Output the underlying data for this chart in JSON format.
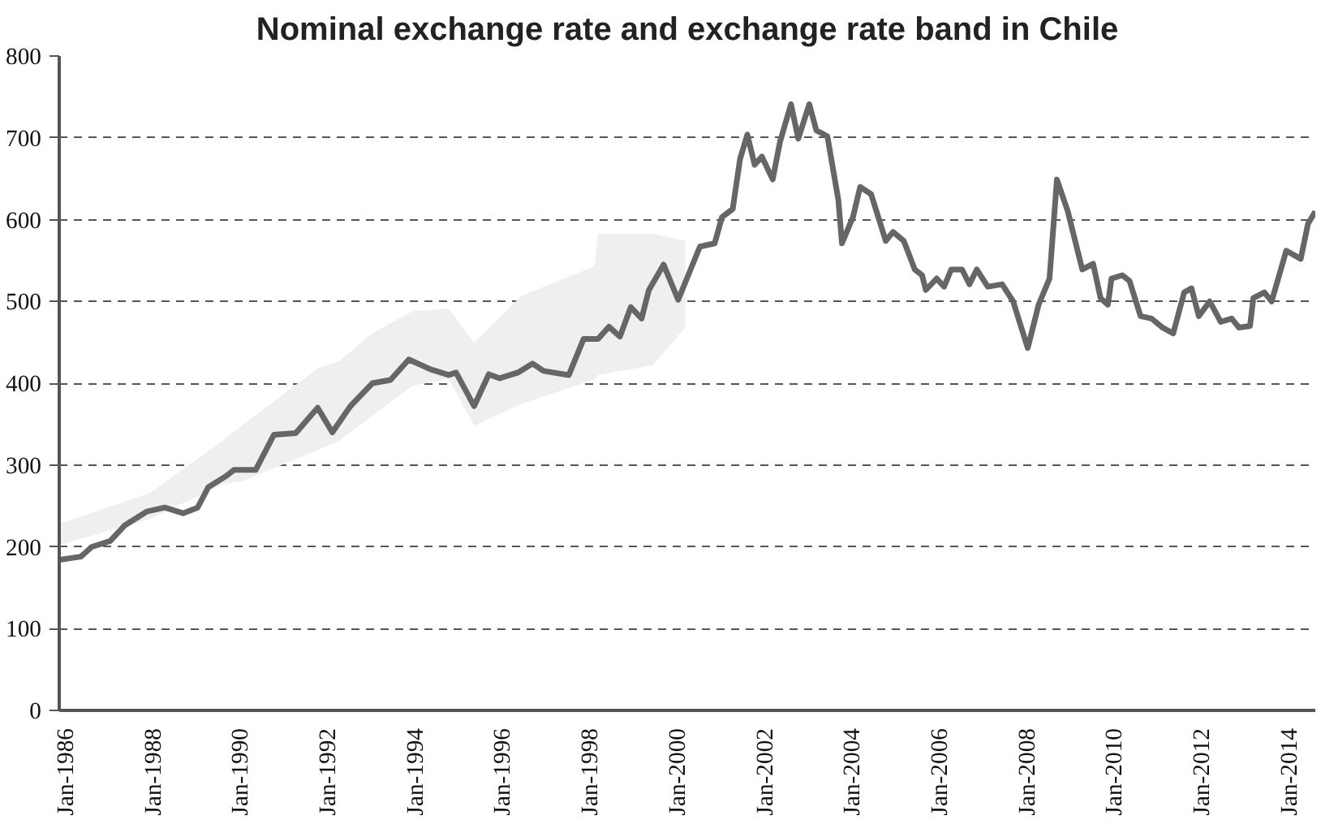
{
  "chart_data": {
    "type": "line",
    "title": "Nominal exchange rate and exchange rate band in Chile",
    "xlim": [
      "1985-11",
      "2014-08"
    ],
    "ylim": [
      0,
      800
    ],
    "yticks": [
      0,
      100,
      200,
      300,
      400,
      500,
      600,
      700,
      800
    ],
    "grid": "y",
    "xticks": [
      {
        "value": "1986-01",
        "label": "Jan-1986"
      },
      {
        "value": "1988-01",
        "label": "Jan-1988"
      },
      {
        "value": "1990-01",
        "label": "Jan-1990"
      },
      {
        "value": "1992-01",
        "label": "Jan-1992"
      },
      {
        "value": "1994-01",
        "label": "Jan-1994"
      },
      {
        "value": "1996-01",
        "label": "Jan-1996"
      },
      {
        "value": "1998-01",
        "label": "Jan-1998"
      },
      {
        "value": "2000-01",
        "label": "Jan-2000"
      },
      {
        "value": "2002-01",
        "label": "Jan-2002"
      },
      {
        "value": "2004-01",
        "label": "Jan-2004"
      },
      {
        "value": "2006-01",
        "label": "Jan-2006"
      },
      {
        "value": "2008-01",
        "label": "Jan-2008"
      },
      {
        "value": "2010-01",
        "label": "Jan-2010"
      },
      {
        "value": "2012-01",
        "label": "Jan-2012"
      },
      {
        "value": "2014-01",
        "label": "Jan-2014"
      }
    ],
    "series": [
      {
        "type": "line",
        "color": "#efefef",
        "x": [
          "1985-11",
          "1987-12",
          "1989-08",
          "1990-01",
          "1991-10",
          "1992-04",
          "1993-01",
          "1993-12",
          "1994-10",
          "1995-05",
          "1996-06",
          "1998-02",
          "1998-03",
          "1999-06",
          "2000-03"
        ],
        "values": [
          null,
          null,
          null,
          null,
          null,
          null,
          null,
          null,
          null,
          null,
          null,
          null,
          null,
          null,
          null
        ],
        "upper": [
          228,
          266,
          330,
          348,
          418,
          427,
          461,
          488,
          491,
          450,
          507,
          543,
          583,
          583,
          574
        ],
        "lower": [
          202,
          234,
          277,
          280,
          318,
          330,
          360,
          397,
          405,
          348,
          375,
          405,
          410,
          422,
          468
        ]
      },
      {
        "type": "line",
        "color": "#666666",
        "x": [
          "1985-11",
          "1986-05",
          "1986-08",
          "1987-01",
          "1987-05",
          "1987-11",
          "1988-04",
          "1988-09",
          "1989-01",
          "1989-04",
          "1989-09",
          "1989-11",
          "1990-05",
          "1990-10",
          "1991-04",
          "1991-10",
          "1992-02",
          "1992-07",
          "1993-01",
          "1993-06",
          "1993-11",
          "1994-05",
          "1994-10",
          "1994-12",
          "1995-05",
          "1995-09",
          "1995-12",
          "1996-05",
          "1996-09",
          "1996-12",
          "1997-07",
          "1997-11",
          "1998-03",
          "1998-06",
          "1998-09",
          "1998-12",
          "1999-03",
          "1999-05",
          "1999-09",
          "2000-01",
          "2000-07",
          "2000-11",
          "2001-01",
          "2001-04",
          "2001-06",
          "2001-08",
          "2001-10",
          "2001-12",
          "2002-03",
          "2002-05",
          "2002-08",
          "2002-10",
          "2003-01",
          "2003-03",
          "2003-06",
          "2003-09",
          "2003-10",
          "2004-01",
          "2004-03",
          "2004-06",
          "2004-10",
          "2004-12",
          "2005-03",
          "2005-06",
          "2005-08",
          "2005-09",
          "2005-12",
          "2006-02",
          "2006-04",
          "2006-07",
          "2006-09",
          "2006-11",
          "2007-02",
          "2007-06",
          "2007-09",
          "2008-01",
          "2008-04",
          "2008-07",
          "2008-09",
          "2008-12",
          "2009-04",
          "2009-07",
          "2009-09",
          "2009-11",
          "2009-12",
          "2010-03",
          "2010-05",
          "2010-08",
          "2010-11",
          "2011-02",
          "2011-05",
          "2011-08",
          "2011-10",
          "2011-12",
          "2012-03",
          "2012-06",
          "2012-09",
          "2012-11",
          "2013-02",
          "2013-03",
          "2013-06",
          "2013-08",
          "2013-12",
          "2014-04",
          "2014-06",
          "2014-08"
        ],
        "values": [
          184,
          188,
          200,
          207,
          226,
          243,
          248,
          241,
          248,
          273,
          287,
          294,
          294,
          337,
          339,
          370,
          340,
          372,
          400,
          404,
          429,
          417,
          410,
          413,
          372,
          411,
          406,
          413,
          424,
          415,
          410,
          454,
          454,
          469,
          457,
          493,
          479,
          514,
          545,
          502,
          567,
          571,
          603,
          613,
          674,
          704,
          667,
          677,
          649,
          695,
          741,
          699,
          741,
          709,
          702,
          624,
          571,
          603,
          640,
          631,
          574,
          585,
          574,
          539,
          532,
          514,
          528,
          518,
          539,
          539,
          521,
          539,
          518,
          521,
          500,
          443,
          496,
          528,
          649,
          610,
          539,
          546,
          504,
          496,
          528,
          532,
          525,
          482,
          479,
          468,
          461,
          511,
          516,
          482,
          500,
          475,
          479,
          468,
          470,
          504,
          511,
          500,
          562,
          552,
          595,
          610
        ]
      }
    ]
  }
}
